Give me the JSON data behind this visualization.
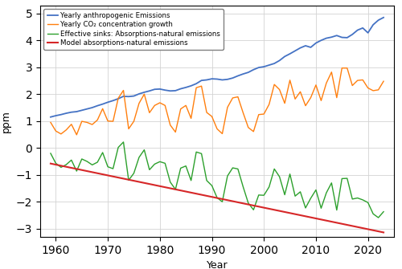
{
  "title": "",
  "xlabel": "Year",
  "ylabel": "ppm",
  "xlim": [
    1957,
    2025
  ],
  "ylim": [
    -3.3,
    5.3
  ],
  "yticks": [
    -3,
    -2,
    -1,
    0,
    1,
    2,
    3,
    4,
    5
  ],
  "xticks": [
    1960,
    1970,
    1980,
    1990,
    2000,
    2010,
    2020
  ],
  "legend_labels": [
    "Yearly anthropogenic Emissions",
    "Yearly CO₂ concentration growth",
    "Effective sinks: Absorptions-natural emissions",
    "Model absorptions-natural emissions"
  ],
  "line_colors": [
    "#4472c4",
    "#ff7f0e",
    "#2ca02c",
    "#d62728"
  ],
  "years": [
    1959,
    1960,
    1961,
    1962,
    1963,
    1964,
    1965,
    1966,
    1967,
    1968,
    1969,
    1970,
    1971,
    1972,
    1973,
    1974,
    1975,
    1976,
    1977,
    1978,
    1979,
    1980,
    1981,
    1982,
    1983,
    1984,
    1985,
    1986,
    1987,
    1988,
    1989,
    1990,
    1991,
    1992,
    1993,
    1994,
    1995,
    1996,
    1997,
    1998,
    1999,
    2000,
    2001,
    2002,
    2003,
    2004,
    2005,
    2006,
    2007,
    2008,
    2009,
    2010,
    2011,
    2012,
    2013,
    2014,
    2015,
    2016,
    2017,
    2018,
    2019,
    2020,
    2021,
    2022,
    2023
  ],
  "anthropogenic": [
    1.15,
    1.2,
    1.24,
    1.29,
    1.33,
    1.35,
    1.4,
    1.45,
    1.5,
    1.57,
    1.63,
    1.7,
    1.76,
    1.83,
    1.92,
    1.91,
    1.93,
    2.01,
    2.07,
    2.12,
    2.18,
    2.19,
    2.15,
    2.12,
    2.13,
    2.2,
    2.25,
    2.31,
    2.39,
    2.51,
    2.53,
    2.57,
    2.56,
    2.53,
    2.55,
    2.6,
    2.68,
    2.75,
    2.81,
    2.91,
    2.99,
    3.02,
    3.08,
    3.14,
    3.25,
    3.4,
    3.5,
    3.61,
    3.72,
    3.8,
    3.74,
    3.9,
    4.0,
    4.08,
    4.12,
    4.18,
    4.11,
    4.1,
    4.22,
    4.38,
    4.46,
    4.28,
    4.58,
    4.75,
    4.85
  ],
  "co2_growth": [
    0.95,
    0.63,
    0.52,
    0.67,
    0.88,
    0.49,
    0.99,
    0.95,
    0.87,
    1.04,
    1.46,
    1.0,
    0.99,
    1.85,
    2.14,
    0.71,
    0.99,
    1.66,
    2.0,
    1.31,
    1.58,
    1.68,
    1.58,
    0.85,
    0.59,
    1.45,
    1.58,
    1.1,
    2.24,
    2.3,
    1.32,
    1.17,
    0.71,
    0.53,
    1.51,
    1.86,
    1.9,
    1.31,
    0.76,
    0.61,
    1.24,
    1.26,
    1.62,
    2.36,
    2.17,
    1.66,
    2.52,
    1.82,
    2.09,
    1.57,
    1.87,
    2.34,
    1.76,
    2.41,
    2.82,
    1.87,
    2.97,
    2.97,
    2.32,
    2.51,
    2.53,
    2.23,
    2.13,
    2.16,
    2.48
  ],
  "effective_sinks": [
    -0.2,
    -0.57,
    -0.72,
    -0.62,
    -0.45,
    -0.86,
    -0.41,
    -0.5,
    -0.63,
    -0.53,
    -0.17,
    -0.7,
    -0.77,
    0.02,
    0.22,
    -1.2,
    -0.94,
    -0.35,
    -0.07,
    -0.81,
    -0.6,
    -0.51,
    -0.57,
    -1.27,
    -1.54,
    -0.75,
    -0.67,
    -1.21,
    -0.15,
    -0.21,
    -1.21,
    -1.4,
    -1.85,
    -2.0,
    -1.04,
    -0.74,
    -0.78,
    -1.44,
    -2.05,
    -2.3,
    -1.75,
    -1.76,
    -1.45,
    -0.78,
    -1.07,
    -1.74,
    -0.97,
    -1.79,
    -1.63,
    -2.23,
    -1.87,
    -1.56,
    -2.24,
    -1.67,
    -1.3,
    -2.31,
    -1.14,
    -1.13,
    -1.9,
    -1.86,
    -1.93,
    -2.03,
    -2.45,
    -2.59,
    -2.37
  ],
  "model_sinks": [
    -0.58,
    -0.62,
    -0.66,
    -0.7,
    -0.74,
    -0.78,
    -0.82,
    -0.86,
    -0.9,
    -0.94,
    -0.98,
    -1.02,
    -1.06,
    -1.1,
    -1.14,
    -1.18,
    -1.22,
    -1.26,
    -1.3,
    -1.34,
    -1.38,
    -1.42,
    -1.46,
    -1.5,
    -1.54,
    -1.58,
    -1.62,
    -1.66,
    -1.7,
    -1.74,
    -1.78,
    -1.82,
    -1.86,
    -1.9,
    -1.94,
    -1.98,
    -2.02,
    -2.06,
    -2.1,
    -2.14,
    -2.18,
    -2.22,
    -2.26,
    -2.3,
    -2.34,
    -2.38,
    -2.42,
    -2.46,
    -2.5,
    -2.54,
    -2.58,
    -2.62,
    -2.66,
    -2.7,
    -2.74,
    -2.78,
    -2.82,
    -2.86,
    -2.9,
    -2.94,
    -2.98,
    -3.02,
    -3.06,
    -3.1,
    -3.14
  ]
}
